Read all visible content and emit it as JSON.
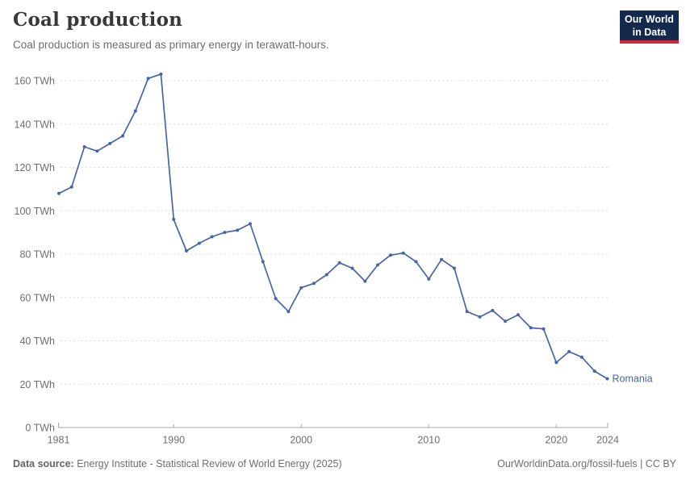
{
  "header": {
    "title": "Coal production",
    "subtitle": "Coal production is measured as primary energy in terawatt-hours.",
    "logo": {
      "line1": "Our World",
      "line2": "in Data",
      "bg_color": "#142a4d",
      "bar_color": "#cf283c",
      "text_color": "#ffffff"
    }
  },
  "chart_data": {
    "type": "line",
    "title": "Coal production",
    "unit": "TWh",
    "ylim": [
      0,
      160
    ],
    "yticks": [
      0,
      20,
      40,
      60,
      80,
      100,
      120,
      140,
      160
    ],
    "xticks": [
      1981,
      1990,
      2000,
      2010,
      2020,
      2024
    ],
    "grid": "horizontal-dashed",
    "legend_position": "end-of-line",
    "x": [
      1981,
      1982,
      1983,
      1984,
      1985,
      1986,
      1987,
      1988,
      1989,
      1990,
      1991,
      1992,
      1993,
      1994,
      1995,
      1996,
      1997,
      1998,
      1999,
      2000,
      2001,
      2002,
      2003,
      2004,
      2005,
      2006,
      2007,
      2008,
      2009,
      2010,
      2011,
      2012,
      2013,
      2014,
      2015,
      2016,
      2017,
      2018,
      2019,
      2020,
      2021,
      2022,
      2023,
      2024
    ],
    "series": [
      {
        "name": "Romania",
        "color": "#4665a8",
        "values": [
          108,
          111,
          129.5,
          127.5,
          131,
          134.5,
          146,
          161,
          163,
          96,
          81.5,
          85,
          88,
          90,
          91,
          94,
          76.5,
          59.5,
          53.5,
          64.5,
          66.5,
          70.5,
          76,
          73.5,
          67.5,
          75,
          79.5,
          80.5,
          76.5,
          68.5,
          77.5,
          73.5,
          53.5,
          51,
          54,
          49,
          52,
          46,
          45.5,
          30,
          35,
          32.5,
          26,
          22.5
        ]
      }
    ]
  },
  "footer": {
    "source_label": "Data source:",
    "source_text": "Energy Institute - Statistical Review of World Energy (2025)",
    "link": "OurWorldinData.org/fossil-fuels | CC BY"
  }
}
